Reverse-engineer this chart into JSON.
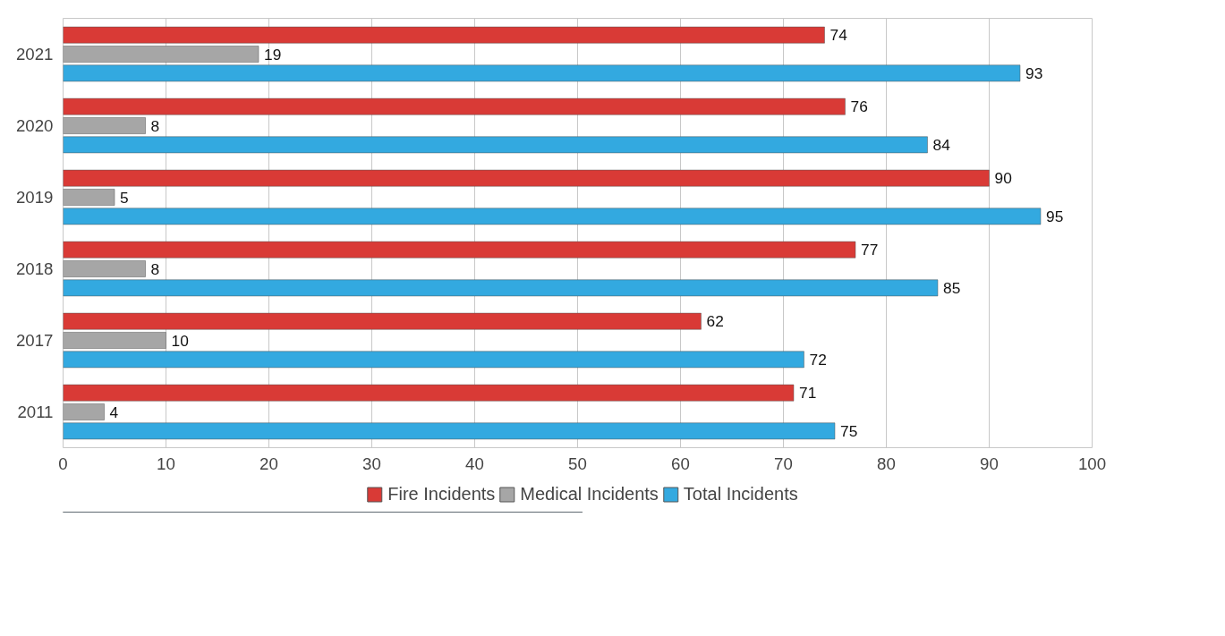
{
  "chart_data": {
    "type": "bar",
    "orientation": "horizontal",
    "categories": [
      "2021",
      "2020",
      "2019",
      "2018",
      "2017",
      "2011"
    ],
    "series": [
      {
        "name": "Fire Incidents",
        "color": "#d93a36",
        "values": [
          74,
          76,
          90,
          77,
          62,
          71
        ]
      },
      {
        "name": "Medical Incidents",
        "color": "#a6a6a6",
        "values": [
          19,
          8,
          5,
          8,
          10,
          4
        ]
      },
      {
        "name": "Total Incidents",
        "color": "#33a9e0",
        "values": [
          93,
          84,
          95,
          85,
          72,
          75
        ]
      }
    ],
    "xlim": [
      0,
      100
    ],
    "xticks": [
      0,
      10,
      20,
      30,
      40,
      50,
      60,
      70,
      80,
      90,
      100
    ],
    "grid": "x",
    "legend": "bottom",
    "data_labels": true
  }
}
